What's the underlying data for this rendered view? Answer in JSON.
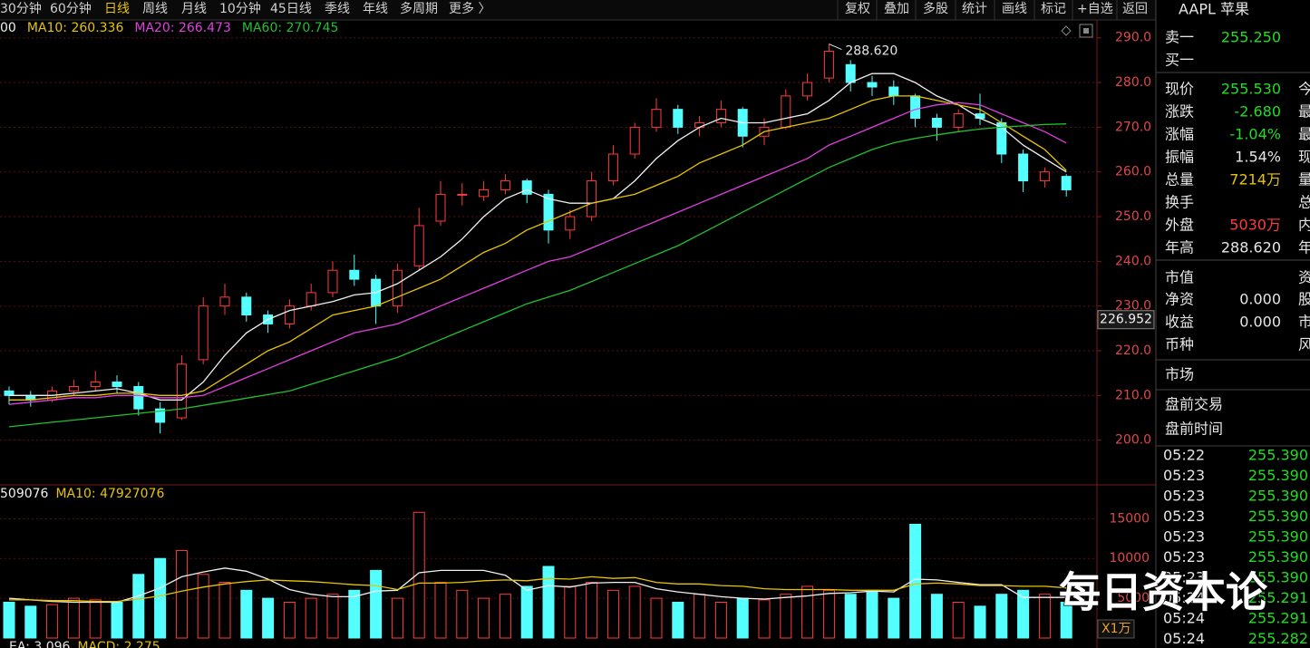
{
  "toolbar": {
    "periods": [
      "30分钟",
      "60分钟",
      "日线",
      "周线",
      "月线",
      "10分钟",
      "45日线",
      "季线",
      "年线",
      "多周期",
      "更多 〉"
    ],
    "actions": [
      "复权",
      "叠加",
      "多股",
      "统计",
      "画线",
      "标记",
      "+自选",
      "返回"
    ]
  },
  "chart_data": {
    "type": "candlestick",
    "open": [
      211,
      210,
      209,
      211,
      212,
      213,
      212,
      207,
      205,
      218,
      230,
      232,
      228,
      226,
      230,
      233,
      238,
      236,
      230,
      239,
      249,
      255,
      254.5,
      256,
      258,
      255,
      247,
      250,
      258,
      264,
      270,
      274,
      270,
      271,
      274,
      268,
      270,
      277,
      281,
      284,
      280,
      279,
      277,
      272,
      270,
      273,
      271,
      264,
      258,
      259
    ],
    "high": [
      212,
      211,
      212,
      213.5,
      215.5,
      214.5,
      213,
      208.5,
      219,
      232,
      235,
      233,
      229,
      231.5,
      235,
      240,
      241.5,
      237,
      239.5,
      252,
      258,
      257.5,
      258,
      259.5,
      258.5,
      256,
      251.5,
      260,
      266,
      271,
      276.5,
      275,
      272.5,
      276,
      274.5,
      272,
      278.5,
      282,
      288.62,
      285,
      281.5,
      280.5,
      277.5,
      273,
      274,
      277.5,
      272,
      265,
      261,
      259.5
    ],
    "low": [
      208,
      207.5,
      208.5,
      210,
      211,
      210.5,
      205.5,
      201.5,
      204.5,
      217,
      228,
      226.5,
      224,
      225,
      229,
      232,
      234.5,
      226,
      228.5,
      238,
      248,
      252.5,
      253.5,
      255,
      253,
      244,
      245,
      249,
      257,
      263,
      269,
      268.5,
      268,
      270,
      265.5,
      266,
      269.5,
      276,
      280,
      278,
      277,
      275,
      270,
      267,
      269,
      270.5,
      262,
      255.5,
      256.5,
      254.5
    ],
    "close": [
      210,
      209,
      211,
      212,
      213,
      212,
      207,
      204,
      217,
      230,
      232,
      228,
      226,
      230,
      233,
      238,
      236,
      230,
      238,
      248,
      255,
      255,
      256,
      258,
      255,
      247,
      250,
      258,
      264,
      270,
      274,
      270,
      271,
      274,
      268,
      270,
      277,
      280,
      287,
      280,
      279,
      277,
      272,
      270,
      273,
      272,
      264,
      258,
      260,
      256
    ],
    "series": [
      {
        "name": "MA5",
        "label": "00",
        "color": "#f0f0f0",
        "values": [
          210,
          210,
          210,
          210.5,
          211,
          211.5,
          210.5,
          209,
          209,
          213,
          219,
          224,
          227,
          229,
          230,
          231,
          232.5,
          233,
          235,
          238,
          241,
          245,
          250,
          254,
          256,
          254,
          253,
          253,
          254,
          258,
          263,
          267,
          270,
          272,
          271,
          271,
          272,
          273,
          276,
          280,
          282,
          282,
          280,
          277,
          275,
          272,
          270,
          266,
          263,
          260
        ]
      },
      {
        "name": "MA10",
        "label": "MA10: 260.336",
        "color": "#e8c400",
        "values": [
          209,
          209,
          209.5,
          210,
          210,
          210.5,
          210.5,
          210,
          210,
          211,
          214,
          217,
          220,
          222,
          225,
          228,
          229,
          230,
          232,
          234,
          236,
          239,
          242,
          244,
          247,
          249,
          251,
          253,
          254,
          255,
          257,
          259,
          262,
          264,
          266,
          269,
          270,
          271,
          272,
          274,
          276,
          277,
          277,
          276,
          275,
          274,
          271,
          268,
          265,
          260.336
        ]
      },
      {
        "name": "MA20",
        "label": "MA20: 266.473",
        "color": "#e040e0",
        "values": [
          208,
          208.5,
          209,
          209.5,
          209.5,
          210,
          210,
          209.5,
          209.5,
          210,
          212,
          214,
          216,
          218,
          220,
          222,
          224,
          225,
          226,
          228,
          230,
          232,
          234,
          236,
          238,
          240,
          241,
          243,
          245,
          247,
          249,
          251,
          253,
          255,
          257,
          259,
          261,
          263,
          266,
          268,
          270,
          272,
          274,
          275,
          275.5,
          275,
          273,
          271,
          269,
          266.473
        ]
      },
      {
        "name": "MA60",
        "label": "MA60: 270.745",
        "color": "#20c030",
        "values": [
          203,
          203.5,
          204,
          204.5,
          205,
          205.5,
          206,
          206.5,
          207,
          207.8,
          208.6,
          209.4,
          210.2,
          211,
          212.5,
          214,
          215.5,
          217,
          218.5,
          220.5,
          222.5,
          224.5,
          226.5,
          228.5,
          230.5,
          232,
          233.5,
          235.5,
          237.5,
          239.5,
          241.5,
          243.5,
          246,
          248.5,
          251,
          253.5,
          256,
          258.5,
          261,
          263,
          265,
          266.5,
          267.5,
          268.3,
          269,
          269.6,
          270,
          270.3,
          270.6,
          270.745
        ]
      }
    ],
    "ylim": [
      190,
      294
    ],
    "yticks": [
      {
        "value": 200,
        "label": "200.0"
      },
      {
        "value": 210,
        "label": "210.0"
      },
      {
        "value": 220,
        "label": "220.0"
      },
      {
        "value": 230,
        "label": "230.0"
      },
      {
        "value": 240,
        "label": "240.0"
      },
      {
        "value": 250,
        "label": "250.0"
      },
      {
        "value": 260,
        "label": "260.0"
      },
      {
        "value": 270,
        "label": "270.0"
      },
      {
        "value": 280,
        "label": "280.0"
      },
      {
        "value": 290,
        "label": "290.0"
      }
    ],
    "grid": true,
    "up_color": "#ff3b3b",
    "down_color": "#54ffff",
    "high_label": "288.620",
    "cursor_price": 226.952,
    "volume": [
      4500,
      4000,
      4200,
      5000,
      4800,
      4500,
      8000,
      10000,
      11000,
      8000,
      7000,
      6000,
      5000,
      4500,
      5000,
      5500,
      6000,
      8500,
      5000,
      15800,
      7000,
      6000,
      5000,
      5500,
      6500,
      9000,
      6500,
      7000,
      6000,
      6500,
      5000,
      4500,
      5500,
      4500,
      5000,
      4800,
      5500,
      6500,
      6000,
      5500,
      6000,
      5000,
      14300,
      5500,
      4500,
      4000,
      5500,
      6000,
      5500,
      4500
    ],
    "volume_series": [
      {
        "name": "MA5",
        "label": "509076",
        "color": "#f0f0f0",
        "values": [
          5000,
          4800,
          4600,
          4500,
          4500,
          4500,
          5300,
          6300,
          7700,
          8300,
          8800,
          8400,
          7400,
          6100,
          5500,
          5200,
          5200,
          5900,
          6000,
          8200,
          8500,
          8500,
          8500,
          7900,
          6000,
          6600,
          6400,
          6900,
          7000,
          7000,
          6200,
          5800,
          5500,
          5200,
          5000,
          4900,
          5100,
          5300,
          5600,
          5700,
          5900,
          5800,
          7400,
          7300,
          7000,
          6700,
          6700,
          5100,
          5100,
          5100
        ]
      },
      {
        "name": "MA10",
        "label": "MA10: 47927076",
        "color": "#e8c400",
        "values": [
          4800,
          4800,
          4700,
          4700,
          4600,
          4600,
          4900,
          5300,
          5900,
          6400,
          6800,
          7100,
          7300,
          7200,
          7100,
          6900,
          6700,
          6600,
          6100,
          6900,
          6900,
          7000,
          7200,
          7300,
          7200,
          7500,
          7400,
          7700,
          7500,
          7600,
          7000,
          6800,
          6800,
          6600,
          6500,
          6200,
          6100,
          6100,
          6100,
          6000,
          6000,
          6000,
          6800,
          6900,
          6800,
          6600,
          6600,
          6500,
          6500,
          6300
        ]
      }
    ],
    "volume_ylim": [
      0,
      18000
    ],
    "volume_yticks": [
      5000,
      10000,
      15000
    ],
    "volume_unit": "X1万",
    "macd_labels": [
      "EA: 3.096",
      "MACD: 2.275"
    ]
  },
  "quote": {
    "title": "AAPL 苹果",
    "rows": [
      {
        "label": "卖一",
        "value": "255.250",
        "color": "#22dd22"
      },
      {
        "label": "买一"
      },
      {
        "label": "现价",
        "value": "255.530",
        "color": "#22dd22",
        "side": "今"
      },
      {
        "label": "涨跌",
        "value": "-2.680",
        "color": "#22dd22",
        "side": "最"
      },
      {
        "label": "涨幅",
        "value": "-1.04%",
        "color": "#22dd22",
        "side": "最"
      },
      {
        "label": "振幅",
        "value": "1.54%",
        "color": "#e6e6e6",
        "side": "现"
      },
      {
        "label": "总量",
        "value": "7214万",
        "color": "#e8c400",
        "side": "量"
      },
      {
        "label": "换手",
        "side": "总"
      },
      {
        "label": "外盘",
        "value": "5030万",
        "color": "#ff3b3b",
        "side": "内"
      },
      {
        "label": "年高",
        "value": "288.620",
        "color": "#e6e6e6",
        "side": "年"
      },
      {
        "label": "市值",
        "side": "资"
      },
      {
        "label": "净资",
        "value": "0.000",
        "color": "#e6e6e6",
        "side": "股"
      },
      {
        "label": "收益",
        "value": "0.000",
        "color": "#e6e6e6",
        "side": "市"
      },
      {
        "label": "币种",
        "side": "风"
      },
      {
        "label": "市场"
      },
      {
        "label": "盘前交易"
      },
      {
        "label": "盘前时间"
      }
    ]
  },
  "trades": [
    [
      "05:22",
      "255.390"
    ],
    [
      "05:23",
      "255.390"
    ],
    [
      "05:23",
      "255.390"
    ],
    [
      "05:23",
      "255.390"
    ],
    [
      "05:23",
      "255.390"
    ],
    [
      "05:23",
      "255.390"
    ],
    [
      "05:23",
      "255.390"
    ],
    [
      "05:24",
      "255.291"
    ],
    [
      "05:24",
      "255.291"
    ],
    [
      "05:24",
      "255.282"
    ]
  ],
  "watermark": "每日资本论"
}
